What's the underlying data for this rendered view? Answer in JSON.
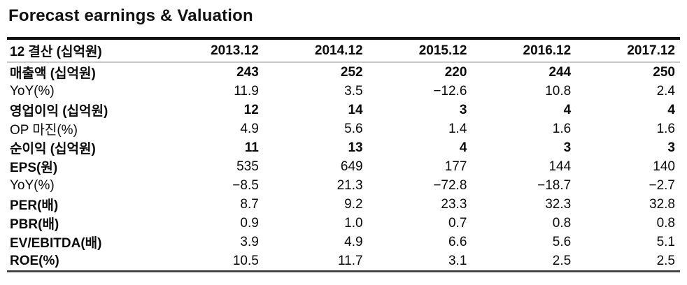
{
  "title": "Forecast earnings & Valuation",
  "table": {
    "header": {
      "label": "12 결산 (십억원)",
      "years": [
        "2013.12",
        "2014.12",
        "2015.12",
        "2016.12",
        "2017.12"
      ]
    },
    "rows": [
      {
        "label": "매출액 (십억원)",
        "values": [
          "243",
          "252",
          "220",
          "244",
          "250"
        ]
      },
      {
        "label": "YoY(%)",
        "values": [
          "11.9",
          "3.5",
          "−12.6",
          "10.8",
          "2.4"
        ]
      },
      {
        "label": "영업이익 (십억원)",
        "values": [
          "12",
          "14",
          "3",
          "4",
          "4"
        ]
      },
      {
        "label": "OP 마진(%)",
        "values": [
          "4.9",
          "5.6",
          "1.4",
          "1.6",
          "1.6"
        ]
      },
      {
        "label": "순이익 (십억원)",
        "values": [
          "11",
          "13",
          "4",
          "3",
          "3"
        ]
      },
      {
        "label": "EPS(원)",
        "values": [
          "535",
          "649",
          "177",
          "144",
          "140"
        ]
      },
      {
        "label": "YoY(%)",
        "values": [
          "−8.5",
          "21.3",
          "−72.8",
          "−18.7",
          "−2.7"
        ]
      },
      {
        "label": "PER(배)",
        "values": [
          "8.7",
          "9.2",
          "23.3",
          "32.3",
          "32.8"
        ]
      },
      {
        "label": "PBR(배)",
        "values": [
          "0.9",
          "1.0",
          "0.7",
          "0.8",
          "0.8"
        ]
      },
      {
        "label": "EV/EBITDA(배)",
        "values": [
          "3.9",
          "4.9",
          "6.6",
          "5.6",
          "5.1"
        ]
      },
      {
        "label": "ROE(%)",
        "values": [
          "10.5",
          "11.7",
          "3.1",
          "2.5",
          "2.5"
        ]
      }
    ]
  },
  "colors": {
    "text": "#0a0a0a",
    "top_rule": "#111111",
    "header_rule": "#c9c9c9",
    "bottom_rule": "#3a3a3a"
  }
}
